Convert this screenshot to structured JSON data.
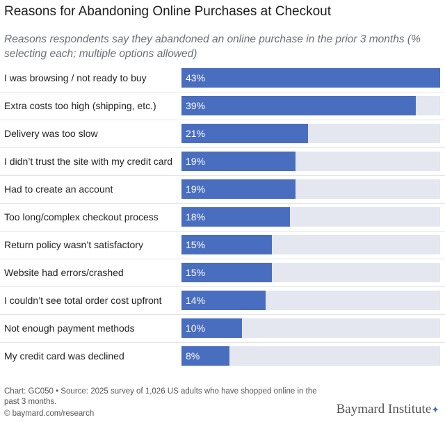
{
  "chart_data": {
    "type": "bar",
    "orientation": "horizontal",
    "title": "Reasons for Abandoning Online Purchases at Checkout",
    "subtitle": "Reasons respondents say they abandoned an online purchase in the prior 3 months (% selecting each; multiple options allowed)",
    "categories": [
      "I was browsing / not ready to buy",
      "Extra costs too high (shipping, etc.)",
      "Delivery was too slow",
      "I didn’t trust the site with my credit card",
      "Had to create an account",
      "Too long/complex checkout process",
      "Return policy wasn’t satisfactory",
      "Website had errors/crashed",
      "I couldn’t see total order cost upfront",
      "Not enough payment methods",
      "My credit card was declined"
    ],
    "values": [
      43,
      39,
      21,
      19,
      19,
      18,
      15,
      15,
      14,
      10,
      8
    ],
    "value_labels": [
      "43%",
      "39%",
      "21%",
      "19%",
      "19%",
      "18%",
      "15%",
      "15%",
      "14%",
      "10%",
      "8%"
    ],
    "xlim": [
      0,
      43
    ],
    "bar_color": "#4a6ebf",
    "track_color": "#e4e7ef"
  },
  "footer": {
    "source": "Chart: GC050 • Source: 2025 survey of 1,026 US adults who have shopped online in the past 3 months.",
    "copyright": "© baymard.com/research",
    "logo": "Baymard Institute"
  }
}
